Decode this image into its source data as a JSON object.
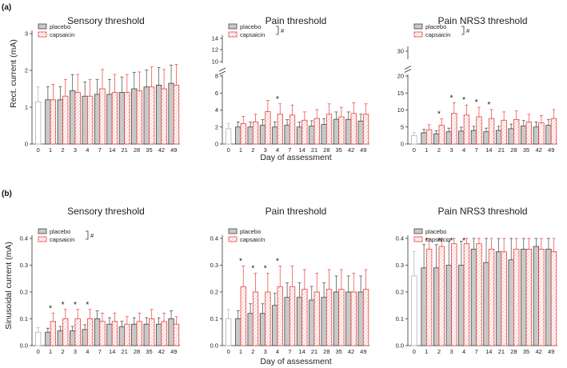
{
  "figure": {
    "panel_a_label": "(a)",
    "panel_b_label": "(b)",
    "ylabel_a": "Rect. current (mA)",
    "ylabel_b": "Sinusoidal current (mA)",
    "xlabel": "Day of assessment",
    "legend_placebo": "placebo",
    "legend_capsaicin": "capsaicin",
    "hash_symbol": "#",
    "star_symbol": "*"
  },
  "colors": {
    "placebo": "#999999",
    "capsaicin": "#e8413c",
    "baseline": "#bbbbbb"
  },
  "chart_data": [
    {
      "type": "bar",
      "title": "Sensory threshold",
      "xlabel": "Day of assessment",
      "ylabel": "Rect. current (mA)",
      "ylim": [
        0,
        3
      ],
      "ytick_labels": [
        "0",
        "1",
        "2",
        "3"
      ],
      "categories": [
        "0",
        "1",
        "2",
        "3",
        "4",
        "7",
        "14",
        "21",
        "28",
        "35",
        "42",
        "49"
      ],
      "baseline_value": 1.15,
      "series": [
        {
          "name": "placebo",
          "values": [
            1.15,
            1.2,
            1.2,
            1.45,
            1.3,
            1.35,
            1.35,
            1.4,
            1.5,
            1.55,
            1.6,
            1.65
          ]
        },
        {
          "name": "capsaicin",
          "values": [
            null,
            1.2,
            1.3,
            1.4,
            1.3,
            1.5,
            1.4,
            1.4,
            1.45,
            1.55,
            1.5,
            1.6
          ]
        }
      ],
      "significant_days": [],
      "group_difference": false
    },
    {
      "type": "bar",
      "title": "Pain threshold",
      "xlabel": "Day of assessment",
      "ylabel": "Rect. current (mA)",
      "ylim_lower": [
        0,
        8
      ],
      "ylim_upper": [
        10,
        14
      ],
      "ytick_labels": [
        "0",
        "2",
        "4",
        "6",
        "8",
        "10",
        "12",
        "14"
      ],
      "categories": [
        "0",
        "1",
        "2",
        "3",
        "4",
        "7",
        "14",
        "21",
        "28",
        "35",
        "42",
        "49"
      ],
      "baseline_value": 1.8,
      "series": [
        {
          "name": "placebo",
          "values": [
            1.8,
            2.0,
            2.0,
            2.2,
            2.0,
            2.2,
            2.0,
            2.1,
            2.3,
            2.9,
            2.9,
            2.7
          ]
        },
        {
          "name": "capsaicin",
          "values": [
            null,
            2.4,
            2.6,
            3.8,
            3.5,
            3.4,
            2.8,
            3.0,
            3.5,
            3.2,
            3.6,
            3.5
          ]
        }
      ],
      "significant_days": [
        "4"
      ],
      "group_difference": true
    },
    {
      "type": "bar",
      "title": "Pain NRS3 threshold",
      "xlabel": "Day of assessment",
      "ylabel": "Rect. current (mA)",
      "ylim_lower": [
        0,
        20
      ],
      "ylim_upper": [
        30,
        32
      ],
      "ytick_labels": [
        "0",
        "5",
        "10",
        "15",
        "20",
        "30"
      ],
      "categories": [
        "0",
        "1",
        "2",
        "3",
        "4",
        "7",
        "14",
        "21",
        "28",
        "35",
        "42",
        "49"
      ],
      "baseline_value": 2.5,
      "series": [
        {
          "name": "placebo",
          "values": [
            2.5,
            3.3,
            3.0,
            3.6,
            3.8,
            4.0,
            3.6,
            4.0,
            4.5,
            5.3,
            5.0,
            5.5
          ]
        },
        {
          "name": "capsaicin",
          "values": [
            null,
            4.2,
            5.5,
            9.0,
            8.5,
            8.0,
            7.5,
            7.0,
            7.2,
            6.5,
            6.2,
            7.5
          ]
        }
      ],
      "significant_days": [
        "2",
        "3",
        "4",
        "7",
        "14"
      ],
      "group_difference": true
    },
    {
      "type": "bar",
      "title": "Sensory threshold",
      "xlabel": "Day of assessment",
      "ylabel": "Sinusoidal current (mA)",
      "ylim": [
        0,
        0.4
      ],
      "ytick_labels": [
        "0.0",
        "0.1",
        "0.2",
        "0.3",
        "0.4"
      ],
      "categories": [
        "0",
        "1",
        "2",
        "3",
        "4",
        "7",
        "14",
        "21",
        "28",
        "35",
        "42",
        "49"
      ],
      "baseline_value": 0.05,
      "series": [
        {
          "name": "placebo",
          "values": [
            0.05,
            0.05,
            0.055,
            0.055,
            0.06,
            0.1,
            0.08,
            0.07,
            0.08,
            0.08,
            0.08,
            0.1
          ]
        },
        {
          "name": "capsaicin",
          "values": [
            null,
            0.09,
            0.1,
            0.1,
            0.1,
            0.09,
            0.09,
            0.08,
            0.09,
            0.1,
            0.09,
            0.08
          ]
        }
      ],
      "significant_days": [
        "1",
        "2",
        "3",
        "4"
      ],
      "group_difference": true
    },
    {
      "type": "bar",
      "title": "Pain threshold",
      "xlabel": "Day of assessment",
      "ylabel": "Sinusoidal current (mA)",
      "ylim": [
        0,
        0.4
      ],
      "ytick_labels": [
        "0.0",
        "0.1",
        "0.2",
        "0.3",
        "0.4"
      ],
      "categories": [
        "0",
        "1",
        "2",
        "3",
        "4",
        "7",
        "14",
        "21",
        "28",
        "35",
        "42",
        "49"
      ],
      "baseline_value": 0.1,
      "series": [
        {
          "name": "placebo",
          "values": [
            0.1,
            0.1,
            0.12,
            0.12,
            0.15,
            0.18,
            0.18,
            0.17,
            0.18,
            0.2,
            0.2,
            0.2
          ]
        },
        {
          "name": "capsaicin",
          "values": [
            null,
            0.22,
            0.2,
            0.2,
            0.22,
            0.22,
            0.21,
            0.2,
            0.21,
            0.21,
            0.2,
            0.21
          ]
        }
      ],
      "significant_days": [
        "1",
        "2",
        "3",
        "4"
      ],
      "group_difference": false
    },
    {
      "type": "bar",
      "title": "Pain NRS3 threshold",
      "xlabel": "Day of assessment",
      "ylabel": "Sinusoidal current (mA)",
      "ylim": [
        0,
        0.4
      ],
      "ytick_labels": [
        "0.0",
        "0.1",
        "0.2",
        "0.3",
        "0.4"
      ],
      "categories": [
        "0",
        "1",
        "2",
        "3",
        "4",
        "7",
        "14",
        "21",
        "28",
        "35",
        "42",
        "49"
      ],
      "baseline_value": 0.26,
      "series": [
        {
          "name": "placebo",
          "values": [
            0.26,
            0.29,
            0.29,
            0.3,
            0.3,
            0.36,
            0.31,
            0.35,
            0.32,
            0.36,
            0.37,
            0.36
          ]
        },
        {
          "name": "capsaicin",
          "values": [
            null,
            0.36,
            0.37,
            0.38,
            0.38,
            0.38,
            0.36,
            0.35,
            0.36,
            0.36,
            0.36,
            0.35
          ]
        }
      ],
      "significant_days": [
        "1",
        "2",
        "3",
        "4"
      ],
      "group_difference": false
    }
  ]
}
